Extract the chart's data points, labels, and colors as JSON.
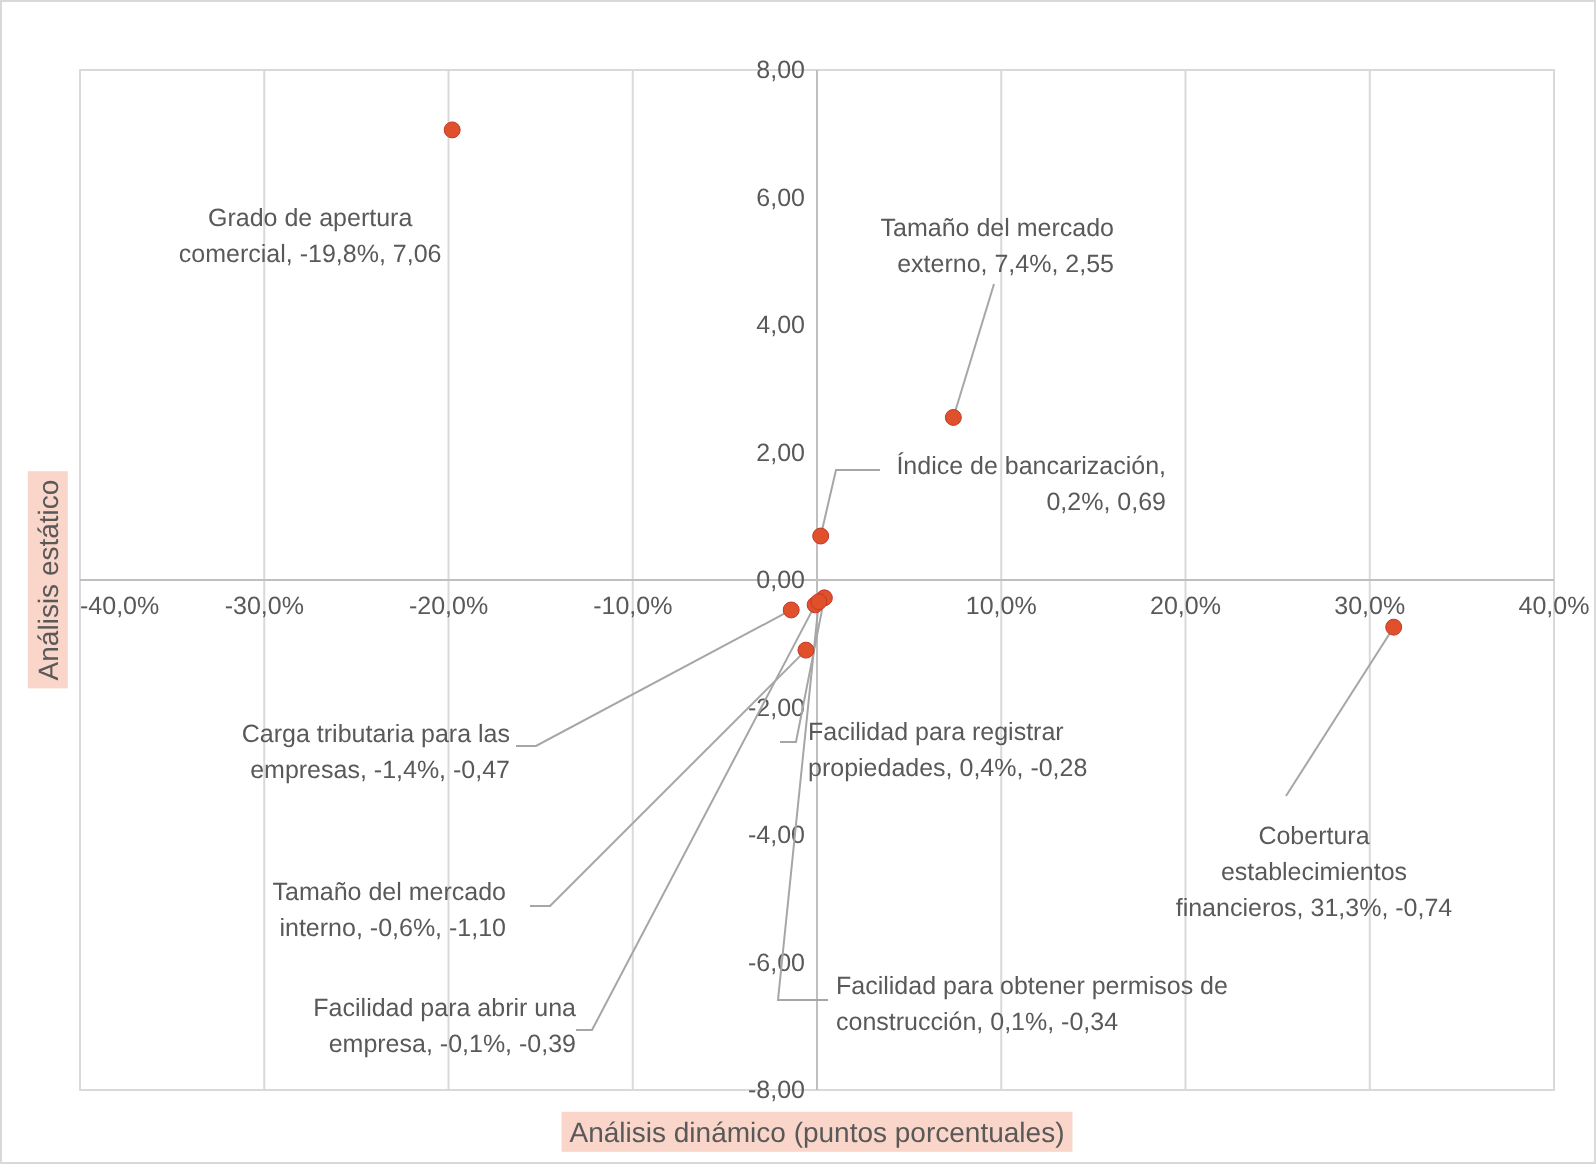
{
  "chart_data": {
    "type": "scatter",
    "xlabel": "Análisis dinámico (puntos porcentuales)",
    "ylabel": "Análisis estático",
    "x": [
      -19.8,
      7.4,
      0.2,
      -1.4,
      -0.6,
      -0.1,
      0.4,
      0.1,
      31.3
    ],
    "values": [
      7.06,
      2.55,
      0.69,
      -0.47,
      -1.1,
      -0.39,
      -0.28,
      -0.34,
      -0.74
    ],
    "color": "#e0502a",
    "marker": "circle",
    "grid": "x",
    "xlim": [
      -40,
      40
    ],
    "xticks": [
      {
        "value": -40,
        "label": "-40,0%"
      },
      {
        "value": -30,
        "label": "-30,0%"
      },
      {
        "value": -20,
        "label": "-20,0%"
      },
      {
        "value": -10,
        "label": "-10,0%"
      },
      {
        "value": 0,
        "label": null
      },
      {
        "value": 10,
        "label": "10,0%"
      },
      {
        "value": 20,
        "label": "20,0%"
      },
      {
        "value": 30,
        "label": "30,0%"
      },
      {
        "value": 40,
        "label": "40,0%"
      }
    ],
    "ylim": [
      -8,
      8
    ],
    "yticks": [
      {
        "value": -8,
        "label": "-8,00"
      },
      {
        "value": -6,
        "label": "-6,00"
      },
      {
        "value": -4,
        "label": "-4,00"
      },
      {
        "value": -2,
        "label": "-2,00"
      },
      {
        "value": 0,
        "label": "0,00"
      },
      {
        "value": 2,
        "label": "2,00"
      },
      {
        "value": 4,
        "label": "4,00"
      },
      {
        "value": 6,
        "label": "6,00"
      },
      {
        "value": 8,
        "label": "8,00"
      }
    ],
    "annotations": [
      {
        "text": "Grado de apertura comercial, -19,8%, 7,06",
        "x": -19.8,
        "y": 7.06
      },
      {
        "text": "Tamaño del mercado externo, 7,4%, 2,55",
        "x": 7.4,
        "y": 2.55
      },
      {
        "text": "Índice de bancarización, 0,2%, 0,69",
        "x": 0.2,
        "y": 0.69
      },
      {
        "text": "Carga tributaria para las empresas, -1,4%, -0,47",
        "x": -1.4,
        "y": -0.47
      },
      {
        "text": "Tamaño del mercado interno, -0,6%, -1,10",
        "x": -0.6,
        "y": -1.1
      },
      {
        "text": "Facilidad para abrir una empresa, -0,1%, -0,39",
        "x": -0.1,
        "y": -0.39
      },
      {
        "text": "Facilidad para registrar propiedades, 0,4%, -0,28",
        "x": 0.4,
        "y": -0.28
      },
      {
        "text": "Facilidad para obtener permisos de construcción, 0,1%, -0,34",
        "x": 0.1,
        "y": -0.34
      },
      {
        "text": "Cobertura establecimientos financieros, 31,3%, -0,74",
        "x": 31.3,
        "y": -0.74
      }
    ]
  }
}
